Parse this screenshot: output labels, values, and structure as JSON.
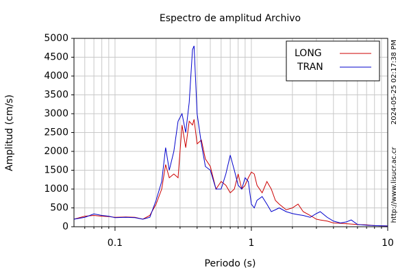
{
  "chart_data": {
    "type": "line",
    "title": "Espectro de amplitud Archivo",
    "xlabel": "Periodo (s)",
    "ylabel": "Amplitud (cm/s)",
    "annotations": [
      "2024-05-25 02:17:38 PM",
      "http://www.lisucr.ac.cr"
    ],
    "xscale": "log",
    "grid": true,
    "legend": "upper right",
    "xlim": [
      0.05,
      10
    ],
    "xticks": [
      0.1,
      1,
      10
    ],
    "xminorticks": [
      0.06,
      0.07,
      0.08,
      0.09,
      0.2,
      0.3,
      0.4,
      0.5,
      0.6,
      0.7,
      0.8,
      0.9,
      2,
      3,
      4,
      5,
      6,
      7,
      8,
      9
    ],
    "ylim": [
      0,
      5000
    ],
    "yticks": [
      0,
      500,
      1000,
      1500,
      2000,
      2500,
      3000,
      3500,
      4000,
      4500,
      5000
    ],
    "x": [
      0.05,
      0.06,
      0.07,
      0.08,
      0.09,
      0.1,
      0.12,
      0.14,
      0.16,
      0.18,
      0.2,
      0.22,
      0.235,
      0.25,
      0.27,
      0.29,
      0.31,
      0.33,
      0.35,
      0.37,
      0.38,
      0.4,
      0.43,
      0.46,
      0.5,
      0.55,
      0.6,
      0.65,
      0.7,
      0.75,
      0.8,
      0.85,
      0.9,
      0.95,
      1.0,
      1.05,
      1.1,
      1.2,
      1.3,
      1.4,
      1.5,
      1.6,
      1.8,
      2.0,
      2.2,
      2.4,
      2.7,
      3.0,
      3.2,
      3.6,
      4,
      4.5,
      5,
      5.4,
      6,
      7,
      8,
      10
    ],
    "series": [
      {
        "name": "LONG",
        "color": "#cc0000",
        "values": [
          200,
          280,
          300,
          280,
          270,
          250,
          260,
          250,
          200,
          300,
          600,
          1000,
          1650,
          1300,
          1400,
          1300,
          2700,
          2100,
          2800,
          2700,
          2850,
          2200,
          2300,
          1800,
          1600,
          1000,
          1200,
          1100,
          900,
          1000,
          1400,
          1000,
          1100,
          1300,
          1450,
          1400,
          1100,
          900,
          1200,
          1000,
          700,
          600,
          450,
          500,
          600,
          400,
          300,
          200,
          180,
          150,
          100,
          90,
          80,
          70,
          60,
          50,
          30,
          20
        ]
      },
      {
        "name": "TRAN",
        "color": "#0000cc",
        "values": [
          200,
          250,
          340,
          300,
          280,
          240,
          250,
          240,
          200,
          250,
          700,
          1200,
          2100,
          1500,
          2000,
          2800,
          3000,
          2500,
          3300,
          4700,
          4800,
          3000,
          2200,
          1600,
          1500,
          1000,
          1000,
          1400,
          1900,
          1500,
          1100,
          1000,
          1300,
          1200,
          600,
          500,
          700,
          800,
          600,
          400,
          450,
          500,
          400,
          350,
          320,
          300,
          250,
          350,
          400,
          250,
          150,
          100,
          130,
          180,
          60,
          40,
          30,
          20
        ]
      }
    ]
  }
}
